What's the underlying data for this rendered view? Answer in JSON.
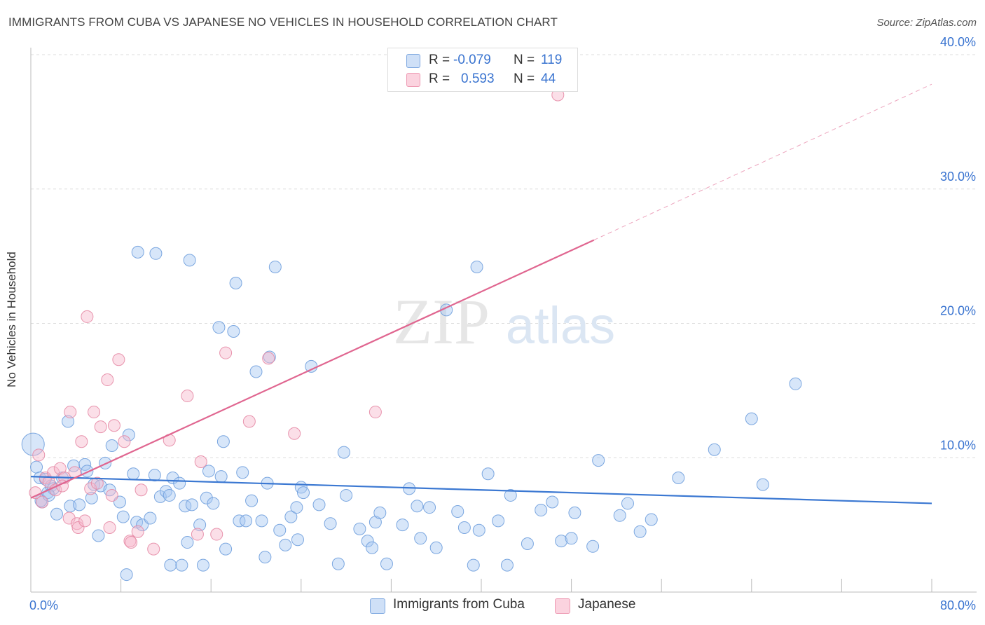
{
  "title": "IMMIGRANTS FROM CUBA VS JAPANESE NO VEHICLES IN HOUSEHOLD CORRELATION CHART",
  "source": "Source: ZipAtlas.com",
  "watermark": {
    "zip": "ZIP",
    "atlas": "atlas"
  },
  "legend_top": {
    "rows": [
      {
        "r_label": "R =",
        "r_value": "-0.079",
        "n_label": "N =",
        "n_value": "119",
        "color": "#a7c7f2"
      },
      {
        "r_label": "R =",
        "r_value": "0.593",
        "n_label": "N =",
        "n_value": "44",
        "color": "#f7b9cb"
      }
    ]
  },
  "chart_data": {
    "type": "scatter",
    "title": "IMMIGRANTS FROM CUBA VS JAPANESE NO VEHICLES IN HOUSEHOLD CORRELATION CHART",
    "xlabel": "",
    "ylabel": "No Vehicles in Household",
    "xlim": [
      0,
      80
    ],
    "ylim": [
      0,
      40
    ],
    "x_tick_labels": [
      "0.0%",
      "80.0%"
    ],
    "y_tick_labels": [
      "10.0%",
      "20.0%",
      "30.0%",
      "40.0%"
    ],
    "y_ticks": [
      10,
      20,
      30,
      40
    ],
    "grid": true,
    "legend_position": "bottom",
    "series": [
      {
        "name": "Immigrants from Cuba",
        "color": "#a7c7f2",
        "edge": "#6f9fdd",
        "trend": {
          "x": [
            0,
            80
          ],
          "y": [
            8.6,
            6.6
          ],
          "color": "#3b78d2"
        },
        "points": [
          [
            0.2,
            11.0
          ],
          [
            0.5,
            9.3
          ],
          [
            0.8,
            8.5
          ],
          [
            1.0,
            6.7
          ],
          [
            1.3,
            8.4
          ],
          [
            1.5,
            7.4
          ],
          [
            1.8,
            7.9
          ],
          [
            2.0,
            7.7
          ],
          [
            2.3,
            5.8
          ],
          [
            2.8,
            8.5
          ],
          [
            3.3,
            12.7
          ],
          [
            3.5,
            6.4
          ],
          [
            3.8,
            9.4
          ],
          [
            4.3,
            6.5
          ],
          [
            4.8,
            9.5
          ],
          [
            5.0,
            9.0
          ],
          [
            5.4,
            7.0
          ],
          [
            5.6,
            8.0
          ],
          [
            6.0,
            4.2
          ],
          [
            6.2,
            7.9
          ],
          [
            6.6,
            9.6
          ],
          [
            7.0,
            7.6
          ],
          [
            7.2,
            10.9
          ],
          [
            7.9,
            6.7
          ],
          [
            8.2,
            5.6
          ],
          [
            8.5,
            1.3
          ],
          [
            8.7,
            11.7
          ],
          [
            9.1,
            8.8
          ],
          [
            9.4,
            5.2
          ],
          [
            9.5,
            25.3
          ],
          [
            9.9,
            5.0
          ],
          [
            10.6,
            5.5
          ],
          [
            11.0,
            8.7
          ],
          [
            11.1,
            25.2
          ],
          [
            11.5,
            7.1
          ],
          [
            12.0,
            7.5
          ],
          [
            12.3,
            7.2
          ],
          [
            12.4,
            2.0
          ],
          [
            12.6,
            8.5
          ],
          [
            13.2,
            8.1
          ],
          [
            13.4,
            2.0
          ],
          [
            13.7,
            6.4
          ],
          [
            13.9,
            3.7
          ],
          [
            14.1,
            24.7
          ],
          [
            14.3,
            6.5
          ],
          [
            15.0,
            5.0
          ],
          [
            15.3,
            2.0
          ],
          [
            15.6,
            7.0
          ],
          [
            15.8,
            9.0
          ],
          [
            16.2,
            6.6
          ],
          [
            16.7,
            19.7
          ],
          [
            16.9,
            8.6
          ],
          [
            17.1,
            11.2
          ],
          [
            17.3,
            3.2
          ],
          [
            18.0,
            19.4
          ],
          [
            18.2,
            23.0
          ],
          [
            18.5,
            5.3
          ],
          [
            18.8,
            8.9
          ],
          [
            19.1,
            5.3
          ],
          [
            19.6,
            6.8
          ],
          [
            20.0,
            16.4
          ],
          [
            20.5,
            5.3
          ],
          [
            20.8,
            2.6
          ],
          [
            21.0,
            8.1
          ],
          [
            21.2,
            17.5
          ],
          [
            21.7,
            24.2
          ],
          [
            22.1,
            4.6
          ],
          [
            22.6,
            3.5
          ],
          [
            23.1,
            5.6
          ],
          [
            23.6,
            6.3
          ],
          [
            23.7,
            3.9
          ],
          [
            24.0,
            7.8
          ],
          [
            24.2,
            7.4
          ],
          [
            24.9,
            16.8
          ],
          [
            25.6,
            6.5
          ],
          [
            26.6,
            5.1
          ],
          [
            27.3,
            2.1
          ],
          [
            27.8,
            10.4
          ],
          [
            28.0,
            7.2
          ],
          [
            29.2,
            4.7
          ],
          [
            29.9,
            3.8
          ],
          [
            30.3,
            3.3
          ],
          [
            30.6,
            5.2
          ],
          [
            31.0,
            5.9
          ],
          [
            31.6,
            2.1
          ],
          [
            33.0,
            5.0
          ],
          [
            33.6,
            7.7
          ],
          [
            34.3,
            6.4
          ],
          [
            35.4,
            6.3
          ],
          [
            34.6,
            4.0
          ],
          [
            36.0,
            3.3
          ],
          [
            36.9,
            21.0
          ],
          [
            37.9,
            6.0
          ],
          [
            38.5,
            4.8
          ],
          [
            39.3,
            2.0
          ],
          [
            39.6,
            24.2
          ],
          [
            39.8,
            4.6
          ],
          [
            40.6,
            8.8
          ],
          [
            41.5,
            5.3
          ],
          [
            42.6,
            7.2
          ],
          [
            42.3,
            2.0
          ],
          [
            44.1,
            3.6
          ],
          [
            45.3,
            6.1
          ],
          [
            46.3,
            6.7
          ],
          [
            47.1,
            3.8
          ],
          [
            48.0,
            4.0
          ],
          [
            48.3,
            5.9
          ],
          [
            49.9,
            3.4
          ],
          [
            50.4,
            9.8
          ],
          [
            52.3,
            5.7
          ],
          [
            53.0,
            6.6
          ],
          [
            54.1,
            4.5
          ],
          [
            55.1,
            5.4
          ],
          [
            57.5,
            8.5
          ],
          [
            60.7,
            10.6
          ],
          [
            64.0,
            12.9
          ],
          [
            65.0,
            8.0
          ],
          [
            67.9,
            15.5
          ],
          [
            0.9,
            6.8
          ],
          [
            1.6,
            7.2
          ]
        ]
      },
      {
        "name": "Japanese",
        "color": "#f7b9cb",
        "edge": "#e68aa5",
        "trend": {
          "x": [
            0,
            50
          ],
          "y": [
            7.0,
            26.2
          ],
          "dash_to": [
            80,
            37.8
          ],
          "color": "#e06690"
        },
        "points": [
          [
            0.4,
            7.4
          ],
          [
            0.7,
            10.2
          ],
          [
            1.0,
            6.7
          ],
          [
            1.3,
            8.5
          ],
          [
            1.6,
            8.2
          ],
          [
            2.0,
            8.9
          ],
          [
            2.2,
            7.6
          ],
          [
            2.6,
            9.2
          ],
          [
            3.0,
            8.5
          ],
          [
            3.4,
            5.5
          ],
          [
            3.5,
            13.4
          ],
          [
            3.9,
            8.9
          ],
          [
            4.1,
            5.1
          ],
          [
            4.2,
            4.8
          ],
          [
            4.5,
            11.2
          ],
          [
            4.8,
            5.3
          ],
          [
            5.0,
            20.5
          ],
          [
            5.3,
            7.7
          ],
          [
            5.6,
            13.4
          ],
          [
            5.9,
            8.1
          ],
          [
            6.2,
            12.3
          ],
          [
            6.8,
            15.8
          ],
          [
            7.0,
            4.8
          ],
          [
            7.2,
            7.2
          ],
          [
            7.4,
            12.4
          ],
          [
            7.8,
            17.3
          ],
          [
            8.3,
            11.2
          ],
          [
            8.8,
            3.8
          ],
          [
            8.9,
            3.7
          ],
          [
            9.5,
            4.5
          ],
          [
            9.8,
            7.6
          ],
          [
            10.9,
            3.2
          ],
          [
            12.3,
            11.3
          ],
          [
            13.9,
            14.6
          ],
          [
            14.8,
            4.3
          ],
          [
            15.1,
            9.7
          ],
          [
            16.5,
            4.3
          ],
          [
            17.3,
            17.8
          ],
          [
            19.4,
            12.7
          ],
          [
            21.1,
            17.4
          ],
          [
            23.4,
            11.8
          ],
          [
            30.6,
            13.4
          ],
          [
            46.8,
            37.0
          ],
          [
            2.8,
            7.9
          ]
        ]
      }
    ]
  },
  "bottom_legend": {
    "items": [
      {
        "label": "Immigrants from Cuba",
        "color": "#a7c7f2"
      },
      {
        "label": "Japanese",
        "color": "#f7b9cb"
      }
    ]
  }
}
